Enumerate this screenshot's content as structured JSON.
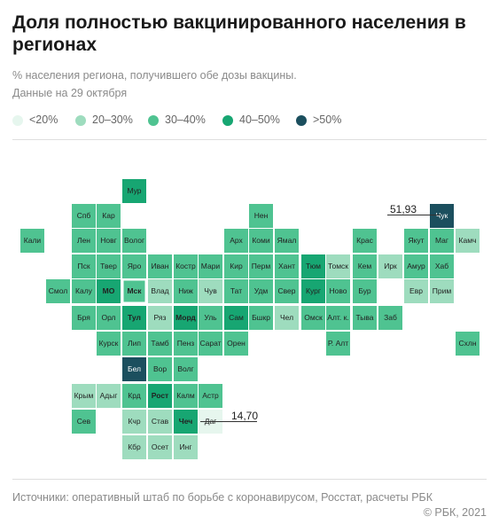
{
  "title": "Доля полностью вакцинированного населения в регионах",
  "subtitle": "% населения региона, получившего обе дозы вакцины.",
  "date_note": "Данные на 29 октября",
  "legend": [
    {
      "label": "<20%",
      "color": "#e6f6ee"
    },
    {
      "label": "20–30%",
      "color": "#9edcbe"
    },
    {
      "label": "30–40%",
      "color": "#4fc391"
    },
    {
      "label": "40–50%",
      "color": "#17a672"
    },
    {
      "label": ">50%",
      "color": "#1b4f5e"
    }
  ],
  "callouts": [
    {
      "region": "Чук",
      "value": "51,93"
    },
    {
      "region": "Даг",
      "value": "14,70"
    }
  ],
  "regions": [
    {
      "name": "Мур",
      "cls": 3
    },
    {
      "name": "Спб",
      "cls": 2
    },
    {
      "name": "Кар",
      "cls": 2
    },
    {
      "name": "Нен",
      "cls": 2
    },
    {
      "name": "Чук",
      "cls": 4
    },
    {
      "name": "Кали",
      "cls": 2
    },
    {
      "name": "Лен",
      "cls": 2
    },
    {
      "name": "Новг",
      "cls": 2
    },
    {
      "name": "Волог",
      "cls": 2
    },
    {
      "name": "Арх",
      "cls": 2
    },
    {
      "name": "Коми",
      "cls": 2
    },
    {
      "name": "Ямал",
      "cls": 2
    },
    {
      "name": "Крас",
      "cls": 2
    },
    {
      "name": "Якут",
      "cls": 2
    },
    {
      "name": "Маг",
      "cls": 2
    },
    {
      "name": "Камч",
      "cls": 1
    },
    {
      "name": "Пск",
      "cls": 2
    },
    {
      "name": "Твер",
      "cls": 2
    },
    {
      "name": "Яро",
      "cls": 2
    },
    {
      "name": "Иван",
      "cls": 2
    },
    {
      "name": "Костр",
      "cls": 2
    },
    {
      "name": "Мари",
      "cls": 2
    },
    {
      "name": "Кир",
      "cls": 2
    },
    {
      "name": "Перм",
      "cls": 2
    },
    {
      "name": "Хант",
      "cls": 2
    },
    {
      "name": "Тюм",
      "cls": 3
    },
    {
      "name": "Томск",
      "cls": 1
    },
    {
      "name": "Кем",
      "cls": 2
    },
    {
      "name": "Ирк",
      "cls": 1
    },
    {
      "name": "Амур",
      "cls": 2
    },
    {
      "name": "Хаб",
      "cls": 2
    },
    {
      "name": "Смол",
      "cls": 2
    },
    {
      "name": "Калу",
      "cls": 2
    },
    {
      "name": "МО",
      "cls": 3
    },
    {
      "name": "Мск",
      "cls": 2
    },
    {
      "name": "Влад",
      "cls": 1
    },
    {
      "name": "Ниж",
      "cls": 2
    },
    {
      "name": "Чув",
      "cls": 1
    },
    {
      "name": "Тат",
      "cls": 2
    },
    {
      "name": "Удм",
      "cls": 2
    },
    {
      "name": "Свер",
      "cls": 2
    },
    {
      "name": "Кург",
      "cls": 3
    },
    {
      "name": "Ново",
      "cls": 2
    },
    {
      "name": "Бур",
      "cls": 2
    },
    {
      "name": "Евр",
      "cls": 1
    },
    {
      "name": "Прим",
      "cls": 1
    },
    {
      "name": "Бря",
      "cls": 2
    },
    {
      "name": "Орл",
      "cls": 2
    },
    {
      "name": "Тул",
      "cls": 3
    },
    {
      "name": "Ряз",
      "cls": 1
    },
    {
      "name": "Морд",
      "cls": 3
    },
    {
      "name": "Уль",
      "cls": 2
    },
    {
      "name": "Сам",
      "cls": 3
    },
    {
      "name": "Бшкр",
      "cls": 2
    },
    {
      "name": "Чел",
      "cls": 1
    },
    {
      "name": "Омск",
      "cls": 2
    },
    {
      "name": "Алт. к.",
      "cls": 2
    },
    {
      "name": "Тыва",
      "cls": 2
    },
    {
      "name": "Заб",
      "cls": 2
    },
    {
      "name": "Курск",
      "cls": 2
    },
    {
      "name": "Лип",
      "cls": 2
    },
    {
      "name": "Тамб",
      "cls": 2
    },
    {
      "name": "Пенз",
      "cls": 2
    },
    {
      "name": "Сарат",
      "cls": 2
    },
    {
      "name": "Орен",
      "cls": 2
    },
    {
      "name": "Р. Алт",
      "cls": 2
    },
    {
      "name": "Схлн",
      "cls": 2
    },
    {
      "name": "Бел",
      "cls": 4
    },
    {
      "name": "Вор",
      "cls": 2
    },
    {
      "name": "Волг",
      "cls": 2
    },
    {
      "name": "Крым",
      "cls": 1
    },
    {
      "name": "Адыг",
      "cls": 1
    },
    {
      "name": "Крд",
      "cls": 2
    },
    {
      "name": "Рост",
      "cls": 3
    },
    {
      "name": "Калм",
      "cls": 2
    },
    {
      "name": "Астр",
      "cls": 2
    },
    {
      "name": "Сев",
      "cls": 2
    },
    {
      "name": "Кчр",
      "cls": 1
    },
    {
      "name": "Став",
      "cls": 1
    },
    {
      "name": "Чеч",
      "cls": 3
    },
    {
      "name": "Даг",
      "cls": 0
    },
    {
      "name": "Кбр",
      "cls": 1
    },
    {
      "name": "Осет",
      "cls": 1
    },
    {
      "name": "Инг",
      "cls": 1
    }
  ],
  "source": "Источники: оперативный штаб по борьбе с коронавирусом, Росстат, расчеты РБК",
  "copyright": "© РБК, 2021"
}
